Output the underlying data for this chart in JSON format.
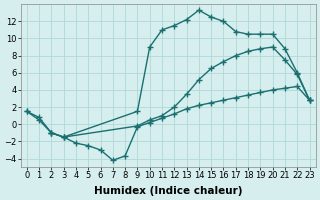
{
  "background_color": "#d6eeee",
  "grid_color": "#afd8d8",
  "line_color": "#1a7070",
  "line_width": 1.0,
  "marker": "+",
  "marker_size": 4,
  "marker_lw": 1.0,
  "xlabel": "Humidex (Indice chaleur)",
  "xlabel_fontsize": 7.5,
  "tick_fontsize": 6,
  "xlim": [
    -0.5,
    23.5
  ],
  "ylim": [
    -5.0,
    14.0
  ],
  "yticks": [
    -4,
    -2,
    0,
    2,
    4,
    6,
    8,
    10,
    12
  ],
  "xticks": [
    0,
    1,
    2,
    3,
    4,
    5,
    6,
    7,
    8,
    9,
    10,
    11,
    12,
    13,
    14,
    15,
    16,
    17,
    18,
    19,
    20,
    21,
    22,
    23
  ],
  "line1_x": [
    0,
    1,
    2,
    3,
    9,
    10,
    11,
    12,
    13,
    14,
    15,
    16,
    17,
    18,
    19,
    20,
    21,
    22,
    23
  ],
  "line1_y": [
    1.5,
    0.5,
    -1.0,
    -1.5,
    1.5,
    9.0,
    11.0,
    11.5,
    12.2,
    13.3,
    12.5,
    12.0,
    10.8,
    10.5,
    10.5,
    10.5,
    8.8,
    6.0,
    2.8
  ],
  "line2_x": [
    0,
    1,
    2,
    3,
    4,
    5,
    6,
    7,
    8,
    9,
    10,
    11,
    12,
    13,
    14,
    15,
    16,
    17,
    18,
    19,
    20,
    21,
    22,
    23
  ],
  "line2_y": [
    1.5,
    0.8,
    -1.0,
    -1.5,
    -2.2,
    -2.5,
    -3.0,
    -4.2,
    -3.7,
    -0.3,
    0.2,
    0.7,
    1.2,
    1.8,
    2.2,
    2.5,
    2.8,
    3.1,
    3.4,
    3.7,
    4.0,
    4.2,
    4.4,
    2.8
  ],
  "line3_x": [
    2,
    3,
    9,
    10,
    11,
    12,
    13,
    14,
    15,
    16,
    17,
    18,
    19,
    20,
    21,
    22,
    23
  ],
  "line3_y": [
    -1.0,
    -1.5,
    -0.2,
    0.5,
    1.0,
    2.0,
    3.5,
    5.2,
    6.5,
    7.3,
    8.0,
    8.5,
    8.8,
    9.0,
    7.5,
    5.8,
    2.8
  ]
}
